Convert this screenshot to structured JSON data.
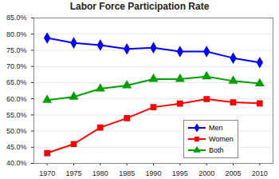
{
  "chart_data": {
    "type": "line",
    "title": "Labor Force Participation Rate",
    "x": [
      1970,
      1975,
      1980,
      1985,
      1990,
      1995,
      2000,
      2005,
      2010
    ],
    "series": [
      {
        "name": "Men",
        "color": "#0000ff",
        "marker": "diamond",
        "values": [
          78.8,
          77.3,
          76.6,
          75.4,
          75.8,
          74.6,
          74.6,
          72.6,
          71.2
        ]
      },
      {
        "name": "Women",
        "color": "#ff0000",
        "marker": "square",
        "values": [
          43.2,
          46.0,
          51.1,
          54.0,
          57.4,
          58.5,
          59.9,
          58.9,
          58.6
        ]
      },
      {
        "name": "Both",
        "color": "#00a000",
        "marker": "triangle",
        "values": [
          59.6,
          60.6,
          63.1,
          64.1,
          66.1,
          66.1,
          66.9,
          65.5,
          64.7
        ]
      }
    ],
    "xlim": [
      1967.5,
      2012.5
    ],
    "xticks": [
      1970,
      1975,
      1980,
      1985,
      1990,
      1995,
      2000,
      2005,
      2010
    ],
    "ylim": [
      40,
      85
    ],
    "yticks": [
      {
        "value": 40,
        "label": "40.0%"
      },
      {
        "value": 45,
        "label": "45.0%"
      },
      {
        "value": 50,
        "label": "50.0%"
      },
      {
        "value": 55,
        "label": "55.0%"
      },
      {
        "value": 60,
        "label": "60.0%"
      },
      {
        "value": 65,
        "label": "65.0%"
      },
      {
        "value": 70,
        "label": "70.0%"
      },
      {
        "value": 75,
        "label": "75.0%"
      },
      {
        "value": 80,
        "label": "80.0%"
      },
      {
        "value": 85,
        "label": "85.0%"
      }
    ],
    "grid": true,
    "legend": "lower right"
  }
}
